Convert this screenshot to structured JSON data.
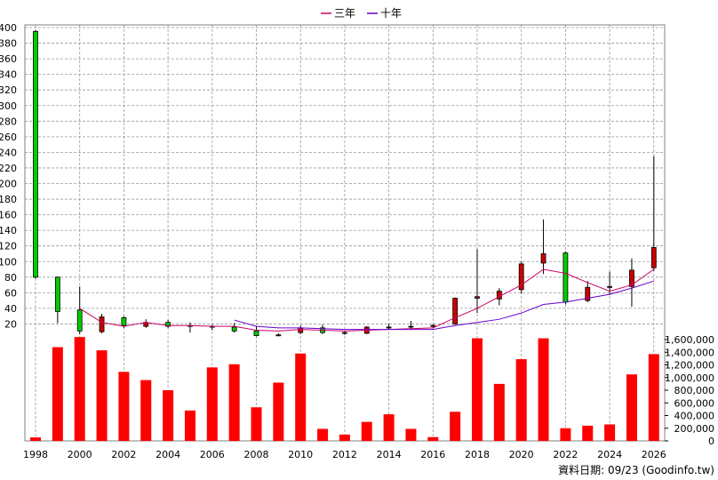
{
  "chart_data": {
    "type": "candlestick-with-volume",
    "legend": [
      {
        "name": "三年",
        "color": "#cc0066"
      },
      {
        "name": "十年",
        "color": "#6600cc"
      }
    ],
    "legend_position": "top-center",
    "grid": true,
    "x_ticks": [
      "1998",
      "2000",
      "2002",
      "2004",
      "2006",
      "2008",
      "2010",
      "2012",
      "2014",
      "2016",
      "2018",
      "2020",
      "2022",
      "2024",
      "2026"
    ],
    "price_axis": {
      "ylim": [
        0,
        400
      ],
      "ticks": [
        "20",
        "40",
        "60",
        "80",
        "100",
        "120",
        "140",
        "160",
        "180",
        "200",
        "220",
        "240",
        "260",
        "280",
        "300",
        "320",
        "340",
        "360",
        "380",
        "400"
      ]
    },
    "volume_axis": {
      "ylim": [
        0,
        1600000
      ],
      "ticks": [
        "0",
        "200,000",
        "400,000",
        "600,000",
        "800,000",
        "1,000,000",
        "1,200,000",
        "1,400,000",
        "1,600,000"
      ]
    },
    "candles": [
      {
        "year": 1998,
        "open": 395,
        "close": 80,
        "high": 397,
        "low": 78,
        "color": "green"
      },
      {
        "year": 1999,
        "open": 80,
        "close": 36,
        "high": 81,
        "low": 21,
        "color": "green"
      },
      {
        "year": 2000,
        "open": 38,
        "close": 11,
        "high": 68,
        "low": 7,
        "color": "green"
      },
      {
        "year": 2001,
        "open": 10,
        "close": 29,
        "high": 33,
        "low": 8,
        "color": "red"
      },
      {
        "year": 2002,
        "open": 28,
        "close": 18,
        "high": 30,
        "low": 15,
        "color": "green"
      },
      {
        "year": 2003,
        "open": 17,
        "close": 22,
        "high": 26,
        "low": 15,
        "color": "red"
      },
      {
        "year": 2004,
        "open": 22,
        "close": 17,
        "high": 25,
        "low": 15,
        "color": "green"
      },
      {
        "year": 2005,
        "open": 18,
        "close": 17,
        "high": 22,
        "low": 9,
        "color": "green"
      },
      {
        "year": 2006,
        "open": 17,
        "close": 16,
        "high": 19,
        "low": 12,
        "color": "green"
      },
      {
        "year": 2007,
        "open": 16,
        "close": 11,
        "high": 21,
        "low": 9,
        "color": "green"
      },
      {
        "year": 2008,
        "open": 11,
        "close": 5,
        "high": 17,
        "low": 4,
        "color": "green"
      },
      {
        "year": 2009,
        "open": 5,
        "close": 6,
        "high": 8,
        "low": 4,
        "color": "red"
      },
      {
        "year": 2010,
        "open": 9,
        "close": 15,
        "high": 18,
        "low": 7,
        "color": "red"
      },
      {
        "year": 2011,
        "open": 15,
        "close": 9,
        "high": 19,
        "low": 7,
        "color": "green"
      },
      {
        "year": 2012,
        "open": 8,
        "close": 9,
        "high": 11,
        "low": 6,
        "color": "red"
      },
      {
        "year": 2013,
        "open": 8,
        "close": 16,
        "high": 17,
        "low": 7,
        "color": "red"
      },
      {
        "year": 2014,
        "open": 15,
        "close": 16,
        "high": 20,
        "low": 13,
        "color": "red"
      },
      {
        "year": 2015,
        "open": 16,
        "close": 17,
        "high": 24,
        "low": 14,
        "color": "red"
      },
      {
        "year": 2016,
        "open": 17,
        "close": 18,
        "high": 20,
        "low": 15,
        "color": "red"
      },
      {
        "year": 2017,
        "open": 20,
        "close": 53,
        "high": 54,
        "low": 19,
        "color": "red"
      },
      {
        "year": 2018,
        "open": 53,
        "close": 55,
        "high": 116,
        "low": 34,
        "color": "red"
      },
      {
        "year": 2019,
        "open": 52,
        "close": 62,
        "high": 66,
        "low": 44,
        "color": "red"
      },
      {
        "year": 2020,
        "open": 64,
        "close": 97,
        "high": 100,
        "low": 59,
        "color": "red"
      },
      {
        "year": 2021,
        "open": 98,
        "close": 110,
        "high": 154,
        "low": 84,
        "color": "red"
      },
      {
        "year": 2022,
        "open": 111,
        "close": 48,
        "high": 113,
        "low": 45,
        "color": "green"
      },
      {
        "year": 2023,
        "open": 50,
        "close": 67,
        "high": 75,
        "low": 48,
        "color": "red"
      },
      {
        "year": 2024,
        "open": 67,
        "close": 68,
        "high": 87,
        "low": 57,
        "color": "red"
      },
      {
        "year": 2025,
        "open": 68,
        "close": 89,
        "high": 104,
        "low": 42,
        "color": "red"
      },
      {
        "year": 2026,
        "open": 92,
        "close": 118,
        "high": 235,
        "low": 88,
        "color": "red"
      }
    ],
    "series": [
      {
        "name": "三年",
        "color": "#cc0066",
        "x": [
          2000,
          2001,
          2002,
          2003,
          2004,
          2005,
          2006,
          2007,
          2008,
          2009,
          2010,
          2011,
          2012,
          2013,
          2014,
          2015,
          2016,
          2017,
          2018,
          2019,
          2020,
          2021,
          2022,
          2023,
          2024,
          2025,
          2026
        ],
        "values": [
          40,
          22,
          17,
          22,
          18,
          18,
          17,
          17,
          12,
          11,
          13,
          12,
          11,
          12,
          13,
          14,
          15,
          28,
          40,
          55,
          70,
          90,
          85,
          73,
          62,
          70,
          90
        ]
      },
      {
        "name": "十年",
        "color": "#6600cc",
        "x": [
          2007,
          2008,
          2009,
          2010,
          2011,
          2012,
          2013,
          2014,
          2015,
          2016,
          2017,
          2018,
          2019,
          2020,
          2021,
          2022,
          2023,
          2024,
          2025,
          2026
        ],
        "values": [
          25,
          17,
          15,
          15,
          14,
          13,
          13,
          13,
          13,
          13,
          18,
          22,
          26,
          34,
          45,
          48,
          53,
          58,
          66,
          75
        ]
      }
    ],
    "volume": {
      "x": [
        1998,
        1999,
        2000,
        2001,
        2002,
        2003,
        2004,
        2005,
        2006,
        2007,
        2008,
        2009,
        2010,
        2011,
        2012,
        2013,
        2014,
        2015,
        2016,
        2017,
        2018,
        2019,
        2020,
        2021,
        2022,
        2023,
        2024,
        2025,
        2026
      ],
      "values": [
        55000,
        1480000,
        1640000,
        1430000,
        1090000,
        960000,
        800000,
        480000,
        1160000,
        1210000,
        530000,
        920000,
        1380000,
        190000,
        100000,
        300000,
        420000,
        190000,
        60000,
        460000,
        1620000,
        900000,
        1290000,
        1620000,
        200000,
        240000,
        260000,
        1050000,
        1370000
      ],
      "color": "#ff0000"
    },
    "footnote": "資料日期: 09/23 (Goodinfo.tw)"
  }
}
